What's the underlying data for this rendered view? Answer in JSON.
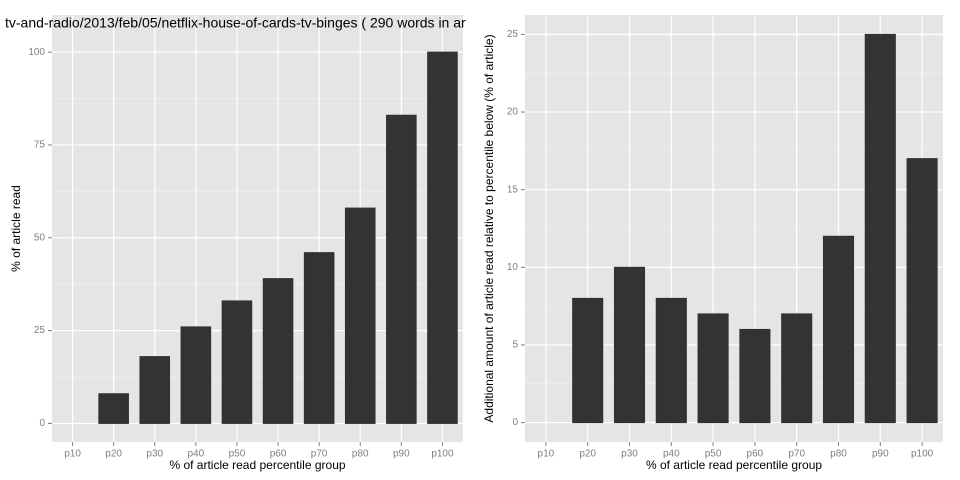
{
  "chart_data": [
    {
      "type": "bar",
      "title": "tv-and-radio/2013/feb/05/netflix-house-of-cards-tv-binges ( 290 words in ar",
      "x_label": "% of article read percentile group",
      "y_label": "% of article read",
      "categories": [
        "p10",
        "p20",
        "p30",
        "p40",
        "p50",
        "p60",
        "p70",
        "p80",
        "p90",
        "p100"
      ],
      "values": [
        0,
        8,
        18,
        26,
        33,
        39,
        46,
        58,
        83,
        100
      ],
      "color": "#333333",
      "ylim": [
        -5,
        110
      ],
      "yticks": [
        0,
        25,
        50,
        75,
        100
      ],
      "grid": true
    },
    {
      "type": "bar",
      "x_label": "% of article read percentile group",
      "y_label": "Additional amount of article read relative to percentile below (% of article)",
      "categories": [
        "p10",
        "p20",
        "p30",
        "p40",
        "p50",
        "p60",
        "p70",
        "p80",
        "p90",
        "p100"
      ],
      "values": [
        0,
        8,
        10,
        8,
        7,
        6,
        7,
        12,
        25,
        17
      ],
      "color": "#333333",
      "ylim": [
        -1.25,
        26.25
      ],
      "yticks": [
        0,
        5,
        10,
        15,
        20,
        25
      ],
      "grid": true
    }
  ]
}
